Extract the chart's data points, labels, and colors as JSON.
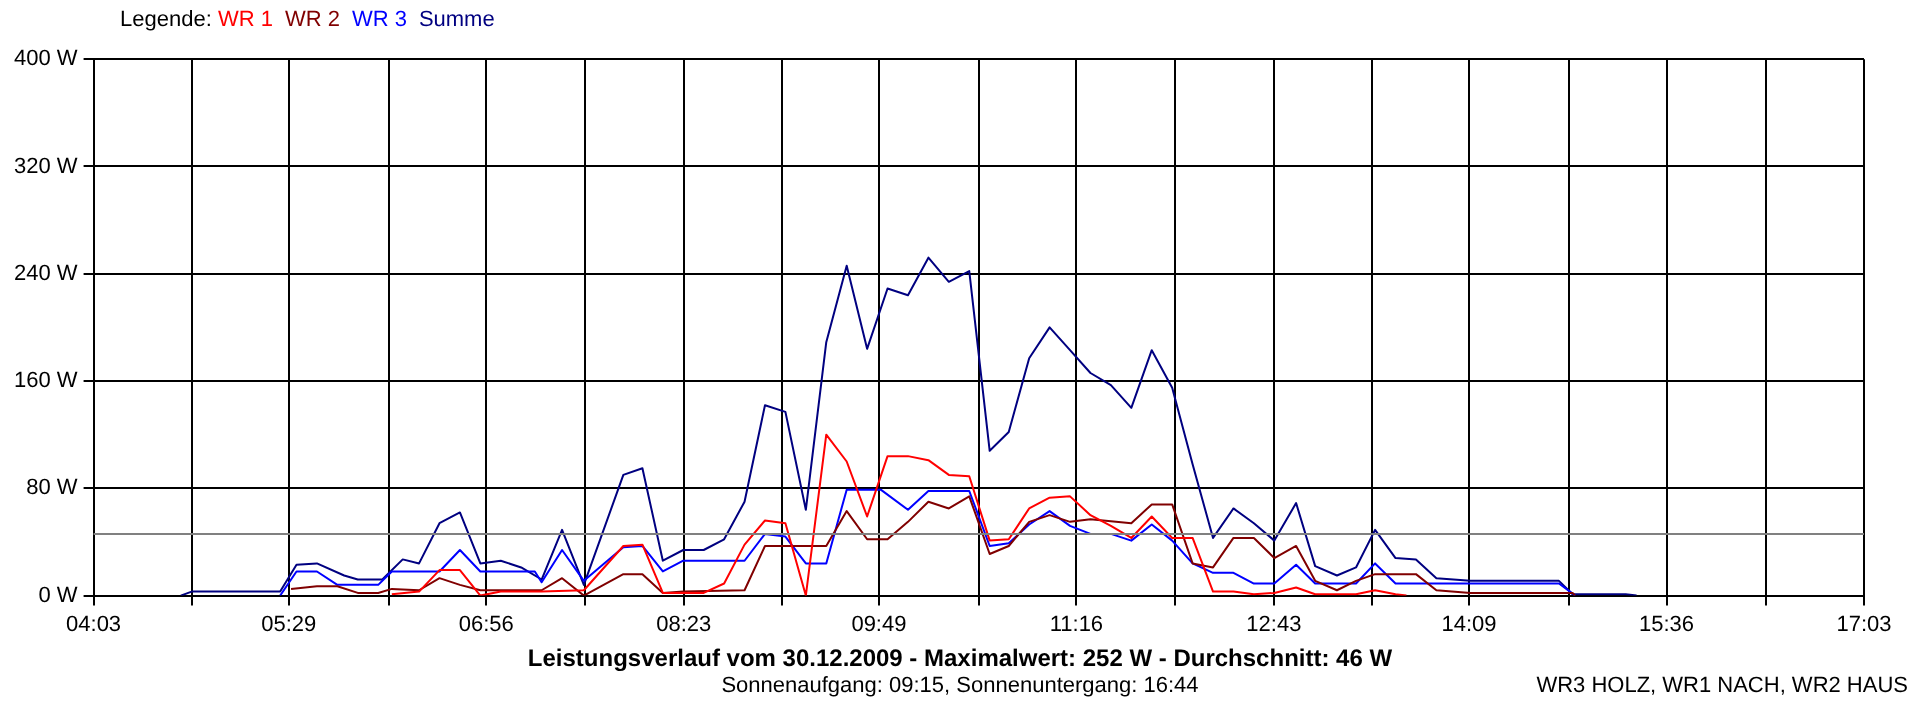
{
  "chart_data": {
    "type": "line",
    "title": "Leistungsverlauf vom 30.12.2009 - Maximalwert: 252 W - Durchschnitt: 46 W",
    "subtitle": "Sonnenaufgang: 09:15, Sonnenuntergang: 16:44",
    "legend_title": "Legende:",
    "annotations": [
      "WR3 HOLZ, WR1 NACH, WR2 HAUS"
    ],
    "legend": "top left",
    "grid": true,
    "marker": "none",
    "line_style": "solid",
    "xlim": [
      4.05,
      17.05
    ],
    "xticks": [
      {
        "value": 4.05,
        "label": "04:03"
      },
      {
        "value": 4.7722,
        "label": null
      },
      {
        "value": 5.4833,
        "label": "05:29"
      },
      {
        "value": 6.2167,
        "label": null
      },
      {
        "value": 6.9333,
        "label": "06:56"
      },
      {
        "value": 7.6611,
        "label": null
      },
      {
        "value": 8.3833,
        "label": "08:23"
      },
      {
        "value": 9.1056,
        "label": null
      },
      {
        "value": 9.8167,
        "label": "09:49"
      },
      {
        "value": 10.55,
        "label": null
      },
      {
        "value": 11.2667,
        "label": "11:16"
      },
      {
        "value": 11.9944,
        "label": null
      },
      {
        "value": 12.7167,
        "label": "12:43"
      },
      {
        "value": 13.4389,
        "label": null
      },
      {
        "value": 14.15,
        "label": "14:09"
      },
      {
        "value": 14.8833,
        "label": null
      },
      {
        "value": 15.6,
        "label": "15:36"
      },
      {
        "value": 16.3278,
        "label": null
      },
      {
        "value": 17.05,
        "label": "17:03"
      }
    ],
    "ylim": [
      0,
      400
    ],
    "yticks": [
      {
        "value": 0,
        "label": "0 W"
      },
      {
        "value": 80,
        "label": "80 W"
      },
      {
        "value": 160,
        "label": "160 W"
      },
      {
        "value": 240,
        "label": "240 W"
      },
      {
        "value": 320,
        "label": "320 W"
      },
      {
        "value": 400,
        "label": "400 W"
      }
    ],
    "ref_lines": [
      {
        "axis": "y",
        "value": 46,
        "color": "#808080"
      }
    ],
    "series": [
      {
        "name": "WR 1",
        "color": "#ff0000",
        "x": [
          6.24,
          6.44,
          6.59,
          6.74,
          6.89,
          7.04,
          7.34,
          7.65,
          7.94,
          8.08,
          8.23,
          8.53,
          8.68,
          8.83,
          8.98,
          9.13,
          9.28,
          9.43,
          9.58,
          9.73,
          9.88,
          10.03,
          10.18,
          10.33,
          10.48,
          10.63,
          10.77,
          10.92,
          11.07,
          11.22,
          11.37,
          11.52,
          11.67,
          11.82,
          11.97,
          12.12,
          12.27,
          12.42,
          12.57,
          12.72,
          12.88,
          13.02,
          13.32,
          13.46,
          13.61,
          13.69
        ],
        "values": [
          1,
          3,
          19,
          19,
          0,
          3,
          3,
          4,
          37,
          38,
          2,
          2,
          9,
          38,
          56,
          54,
          0,
          120,
          100,
          59,
          104,
          104,
          101,
          90,
          89,
          41,
          42,
          65,
          73,
          74,
          60,
          52,
          43,
          59,
          43,
          43,
          3,
          3,
          1,
          2,
          6,
          1,
          1,
          4,
          1,
          0
        ]
      },
      {
        "name": "WR 2",
        "color": "#800000",
        "x": [
          5.5,
          5.69,
          5.84,
          5.99,
          6.14,
          6.24,
          6.44,
          6.59,
          6.74,
          6.89,
          7.34,
          7.49,
          7.65,
          7.94,
          8.08,
          8.23,
          8.38,
          8.83,
          8.98,
          9.43,
          9.58,
          9.73,
          9.88,
          10.03,
          10.18,
          10.33,
          10.48,
          10.63,
          10.77,
          10.92,
          11.07,
          11.22,
          11.37,
          11.67,
          11.82,
          11.97,
          12.12,
          12.27,
          12.42,
          12.57,
          12.72,
          12.88,
          13.02,
          13.18,
          13.32,
          13.46,
          13.76,
          13.91,
          14.16,
          14.91,
          14.93
        ],
        "values": [
          5,
          7,
          7,
          2,
          2,
          5,
          4,
          13,
          8,
          4,
          4,
          13,
          0,
          16,
          16,
          2,
          3,
          4,
          37,
          37,
          63,
          42,
          42,
          55,
          70,
          65,
          74,
          31,
          37,
          55,
          60,
          55,
          57,
          54,
          68,
          68,
          24,
          21,
          43,
          43,
          28,
          37,
          11,
          4,
          11,
          16,
          16,
          4,
          2,
          2,
          0
        ]
      },
      {
        "name": "WR 3",
        "color": "#0000ff",
        "x": [
          5.42,
          5.54,
          5.69,
          5.84,
          6.14,
          6.24,
          6.59,
          6.74,
          6.89,
          7.29,
          7.34,
          7.49,
          7.65,
          7.94,
          8.08,
          8.23,
          8.38,
          8.83,
          8.98,
          9.13,
          9.28,
          9.43,
          9.58,
          9.83,
          10.03,
          10.18,
          10.48,
          10.63,
          10.77,
          10.92,
          11.07,
          11.22,
          11.37,
          11.52,
          11.67,
          11.82,
          11.97,
          12.12,
          12.27,
          12.42,
          12.57,
          12.72,
          12.88,
          13.02,
          13.32,
          13.46,
          13.61,
          14.81,
          14.93
        ],
        "values": [
          0,
          18,
          18,
          8,
          8,
          18,
          18,
          34,
          18,
          18,
          10,
          34,
          11,
          36,
          37,
          18,
          26,
          26,
          46,
          44,
          24,
          24,
          79,
          79,
          64,
          78,
          78,
          37,
          39,
          53,
          63,
          52,
          46,
          46,
          41,
          53,
          41,
          24,
          17,
          17,
          9,
          9,
          23,
          9,
          9,
          24,
          9,
          9,
          0
        ]
      },
      {
        "name": "Summe",
        "color": "#000080",
        "x": [
          4.69,
          4.77,
          5.42,
          5.54,
          5.69,
          5.89,
          5.99,
          6.17,
          6.32,
          6.44,
          6.59,
          6.74,
          6.89,
          7.04,
          7.19,
          7.34,
          7.49,
          7.65,
          7.94,
          8.08,
          8.23,
          8.38,
          8.53,
          8.68,
          8.83,
          8.98,
          9.13,
          9.28,
          9.43,
          9.58,
          9.73,
          9.88,
          10.03,
          10.18,
          10.33,
          10.48,
          10.63,
          10.77,
          10.92,
          11.07,
          11.22,
          11.37,
          11.52,
          11.67,
          11.82,
          11.97,
          12.12,
          12.27,
          12.42,
          12.57,
          12.72,
          12.88,
          13.02,
          13.18,
          13.32,
          13.46,
          13.61,
          13.76,
          13.91,
          14.16,
          14.81,
          14.91,
          15.3,
          15.38
        ],
        "values": [
          0,
          3,
          3,
          23,
          24,
          15,
          12,
          12,
          27,
          24,
          54,
          62,
          24,
          26,
          21,
          12,
          49,
          8,
          90,
          95,
          26,
          34,
          34,
          42,
          70,
          142,
          137,
          64,
          189,
          246,
          184,
          229,
          224,
          252,
          234,
          242,
          108,
          122,
          177,
          200,
          183,
          166,
          157,
          140,
          183,
          155,
          98,
          43,
          65,
          54,
          41,
          69,
          22,
          15,
          21,
          49,
          28,
          27,
          13,
          11,
          11,
          1,
          1,
          0
        ]
      }
    ]
  }
}
